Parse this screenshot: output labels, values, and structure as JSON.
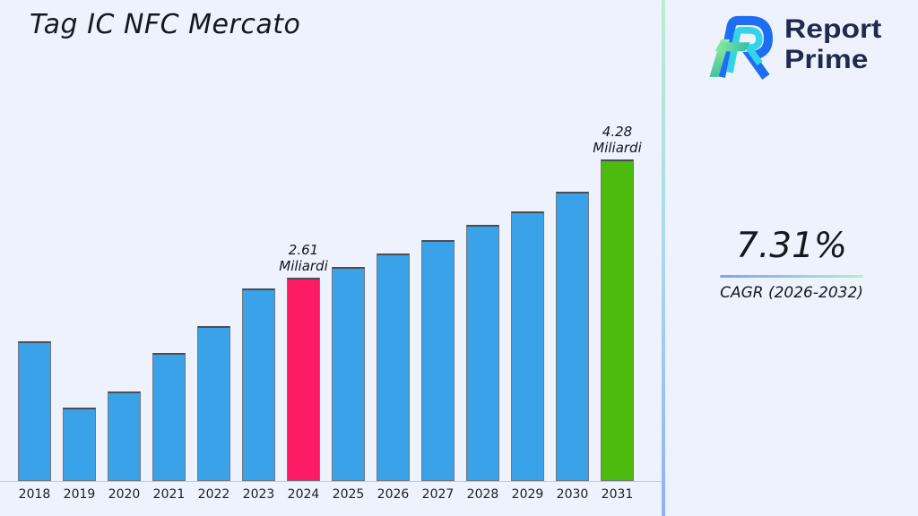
{
  "page": {
    "background": "#edf2fc"
  },
  "title": "Tag IC NFC Mercato",
  "logo": {
    "line1": "Report",
    "line2": "Prime",
    "text_color": "#202a4f",
    "mark_colors": {
      "outer_ribbon": "#1d6ef2",
      "inner_ribbon": "#35d3ea",
      "stem_light_green": "#93ec9d",
      "stem_teal": "#46c49d",
      "bar_teal": "#2fbcaa"
    }
  },
  "divider": {
    "top_color": "#b9efcd",
    "bottom_color": "#8fb1f7"
  },
  "stats": {
    "cagr_value": "7.31%",
    "cagr_label": "CAGR (2026-2032)",
    "underline_left_color": "#7ba4f2",
    "underline_right_color": "#b6eec9"
  },
  "chart_data": {
    "type": "bar",
    "title": "Tag IC NFC Mercato",
    "value_unit": "Miliardi",
    "categories": [
      "2018",
      "2019",
      "2020",
      "2021",
      "2022",
      "2023",
      "2024",
      "2025",
      "2026",
      "2027",
      "2028",
      "2029",
      "2030",
      "2031"
    ],
    "values": [
      1.71,
      0.77,
      1.0,
      1.55,
      1.93,
      2.46,
      2.61,
      2.76,
      2.95,
      3.14,
      3.36,
      3.55,
      3.82,
      4.28
    ],
    "bar_color_default": "#3aa2e8",
    "annotated_points": [
      {
        "category": "2024",
        "value": 2.61,
        "label": "2.61\nMiliardi",
        "color": "#fb1a63"
      },
      {
        "category": "2031",
        "value": 4.28,
        "label": "4.28\nMiliardi",
        "color": "#4cbb0e"
      }
    ],
    "xlabel": "",
    "ylabel": "",
    "grid": false,
    "y_axis_visible": false,
    "legend": false
  }
}
